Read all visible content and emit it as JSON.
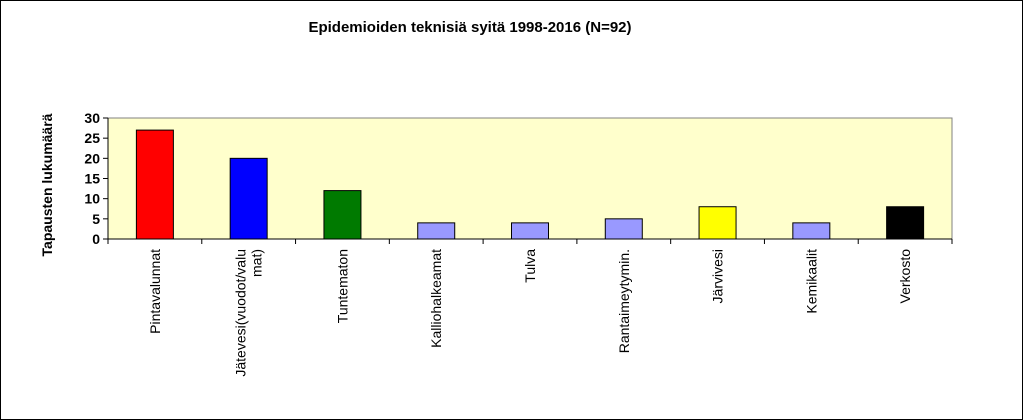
{
  "chart_data": {
    "type": "bar",
    "title": "Epidemioiden teknisiä syitä 1998-2016  (N=92)",
    "xlabel": "",
    "ylabel": "Tapausten lukumäärä",
    "ylim": [
      0,
      30
    ],
    "yticks": [
      0,
      5,
      10,
      15,
      20,
      25,
      30
    ],
    "grid": false,
    "categories": [
      [
        "Pintavalunnat"
      ],
      [
        "Jätevesi(vuodot/valu",
        "mat)"
      ],
      [
        "Tuntematon"
      ],
      [
        "Kalliohalkeamat"
      ],
      [
        "Tulva"
      ],
      [
        "Rantaimeytymin."
      ],
      [
        "Järvivesi"
      ],
      [
        "Kemikaalit"
      ],
      [
        "Verkosto"
      ]
    ],
    "values": [
      27,
      20,
      12,
      4,
      4,
      5,
      8,
      4,
      8
    ],
    "colors": [
      "#ff0000",
      "#0000ff",
      "#007a00",
      "#9999ff",
      "#9999ff",
      "#9999ff",
      "#ffff00",
      "#9999ff",
      "#000000"
    ],
    "plot_background": "#ffffcc"
  }
}
